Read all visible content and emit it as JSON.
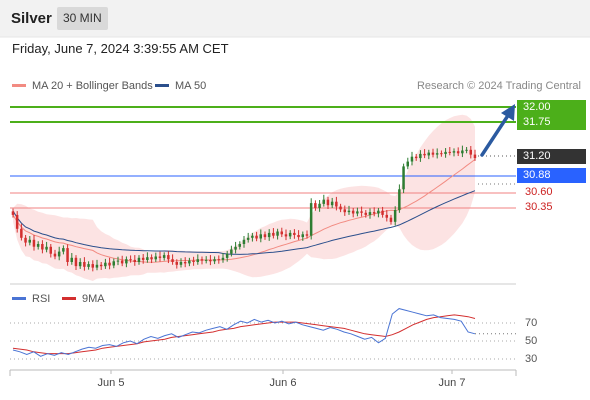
{
  "header": {
    "title": "Silver",
    "timeframe": "30 MIN"
  },
  "datetime": "Friday, June 7, 2024 3:39:55 AM CET",
  "legend": [
    {
      "label": "MA 20 + Bollinger Bands",
      "color": "#f28b82"
    },
    {
      "label": "MA 50",
      "color": "#2b4f8c"
    }
  ],
  "credit": "Research © 2024 Trading Central",
  "colors": {
    "up": "#2e7d32",
    "down": "#d32f2f",
    "bollinger": "#fcdede",
    "ma20": "#f28b82",
    "ma50": "#2b4f8c",
    "resistance": "#4caf1a",
    "pivot": "#2962ff",
    "support": "#f08080",
    "arrow": "#2b5aa0",
    "rsi": "#4a74d4",
    "rsi_ma": "#d32f2f"
  },
  "levels": {
    "resistance": [
      "32.00",
      "31.75"
    ],
    "last": "31.20",
    "pivot": "30.88",
    "support": [
      "30.60",
      "30.35"
    ]
  },
  "rsi_legend": [
    {
      "label": "RSI",
      "color": "#4a74d4"
    },
    {
      "label": "9MA",
      "color": "#d32f2f"
    }
  ],
  "rsi_ticks": [
    "70",
    "50",
    "30"
  ],
  "x_labels": [
    "Jun 5",
    "Jun 6",
    "Jun 7"
  ],
  "chart_data": {
    "type": "candlestick",
    "instrument": "Silver",
    "timeframe": "30 MIN",
    "x_ticks": [
      "Jun 5",
      "Jun 6",
      "Jun 7"
    ],
    "price_ylim": [
      29.3,
      32.3
    ],
    "rsi_ylim": [
      0,
      100
    ],
    "closes": [
      30.38,
      30.18,
      30.05,
      29.98,
      30.02,
      29.92,
      29.96,
      29.88,
      29.92,
      29.82,
      29.78,
      29.85,
      29.9,
      29.7,
      29.76,
      29.64,
      29.7,
      29.63,
      29.67,
      29.62,
      29.66,
      29.64,
      29.69,
      29.65,
      29.71,
      29.72,
      29.68,
      29.74,
      29.73,
      29.7,
      29.76,
      29.73,
      29.77,
      29.74,
      29.78,
      29.76,
      29.8,
      29.74,
      29.7,
      29.66,
      29.7,
      29.68,
      29.72,
      29.7,
      29.74,
      29.72,
      29.73,
      29.71,
      29.74,
      29.73,
      29.76,
      29.82,
      29.88,
      29.92,
      29.96,
      30.02,
      30.05,
      30.08,
      30.04,
      30.1,
      30.06,
      30.12,
      30.08,
      30.14,
      30.1,
      30.07,
      30.12,
      30.09,
      30.06,
      30.1,
      30.08,
      30.55,
      30.48,
      30.54,
      30.6,
      30.52,
      30.57,
      30.5,
      30.46,
      30.42,
      30.44,
      30.4,
      30.43,
      30.41,
      30.38,
      30.42,
      30.4,
      30.44,
      30.38,
      30.34,
      30.28,
      30.45,
      30.75,
      31.08,
      31.15,
      31.22,
      31.2,
      31.26,
      31.24,
      31.28,
      31.25,
      31.27,
      31.26,
      31.29,
      31.28,
      31.3,
      31.27,
      31.31,
      31.32,
      31.25,
      31.2
    ],
    "rsi_overlay": {
      "rsi": [
        40,
        38,
        35,
        38,
        33,
        36,
        34,
        37,
        35,
        38,
        41,
        43,
        42,
        45,
        46,
        44,
        48,
        50,
        47,
        52,
        55,
        53,
        56,
        58,
        54,
        57,
        60,
        59,
        62,
        64,
        66,
        63,
        68,
        72,
        70,
        74,
        71,
        73,
        70,
        72,
        69,
        71,
        68,
        66,
        64,
        62,
        65,
        63,
        60,
        58,
        55,
        52,
        54,
        48,
        53,
        80,
        86,
        84,
        82,
        80,
        78,
        79,
        76,
        75,
        74,
        72,
        60,
        58
      ],
      "rsi_ma": [
        42,
        41,
        40,
        38,
        37,
        36,
        36,
        36,
        36,
        37,
        38,
        39,
        40,
        42,
        43,
        44,
        45,
        46,
        47,
        49,
        50,
        51,
        52,
        54,
        55,
        56,
        57,
        58,
        59,
        60,
        62,
        63,
        64,
        66,
        67,
        68,
        69,
        70,
        71,
        71,
        71,
        71,
        70,
        69,
        68,
        67,
        66,
        65,
        64,
        62,
        60,
        58,
        57,
        56,
        55,
        57,
        60,
        64,
        68,
        71,
        74,
        76,
        77,
        78,
        79,
        78,
        77,
        75
      ],
      "levels": [
        70,
        50,
        30
      ]
    }
  }
}
